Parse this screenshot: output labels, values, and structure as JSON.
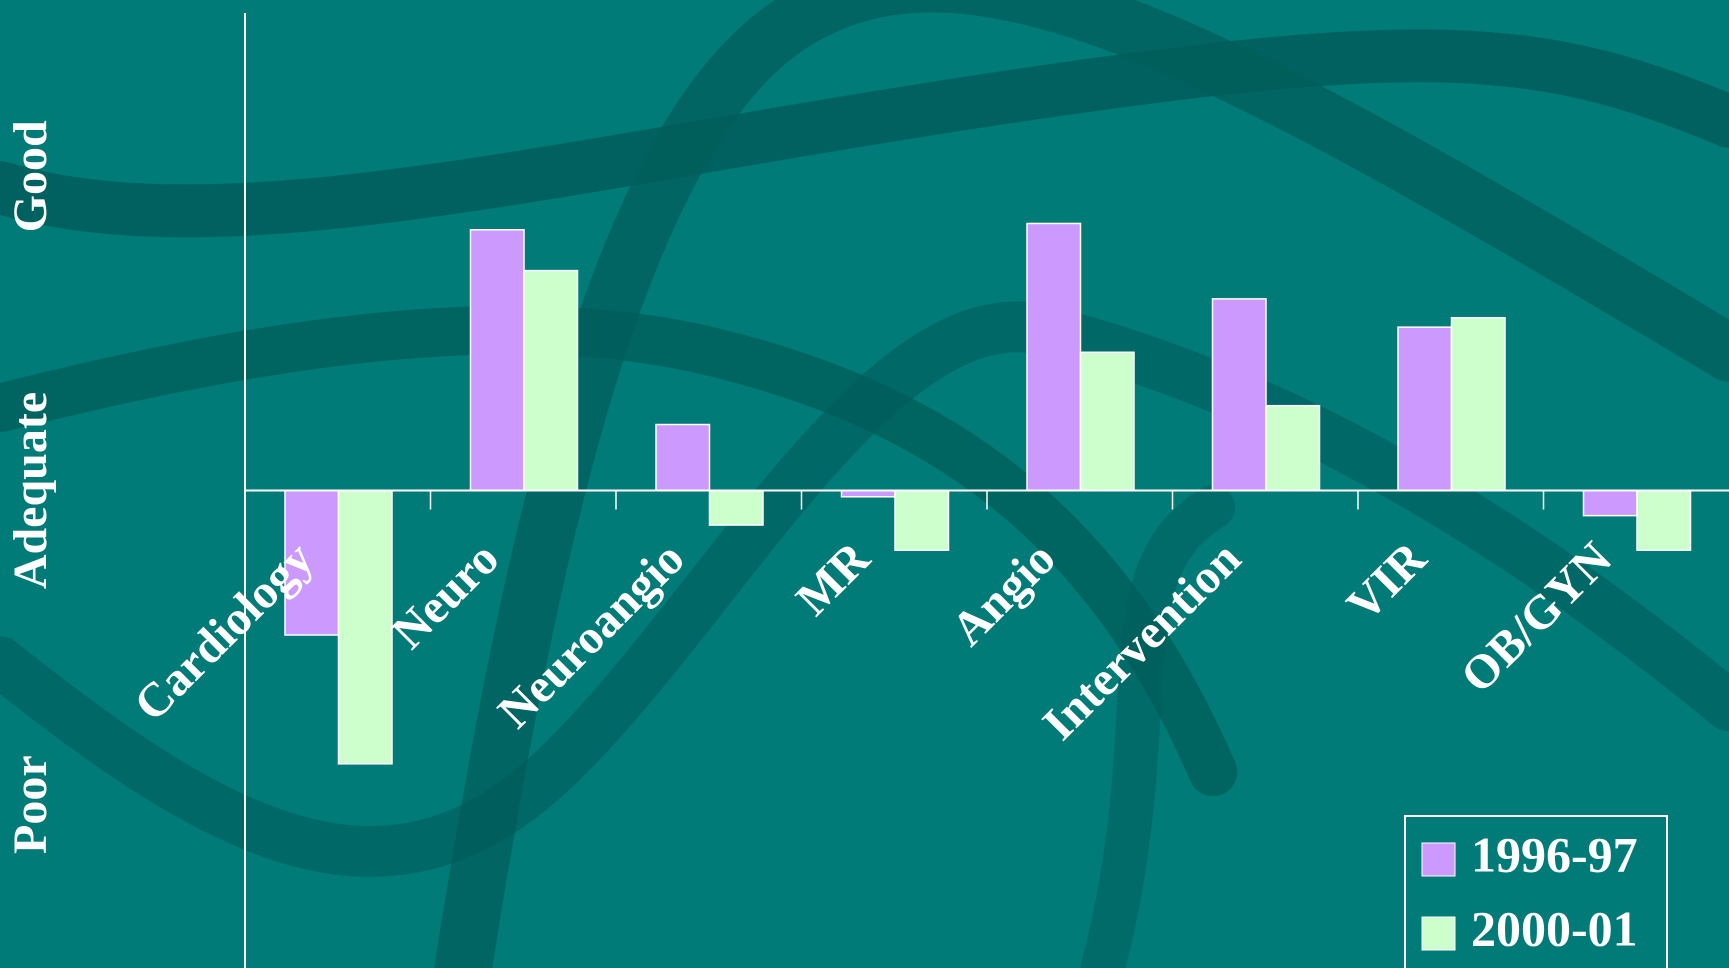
{
  "chart_data": {
    "type": "bar",
    "categories": [
      "Cardiology",
      "Neuro",
      "Neuroangio",
      "MR",
      "Angio",
      "Intervention",
      "VIR",
      "OB/GYN"
    ],
    "series": [
      {
        "name": "1996-97",
        "color": "#cc99ff",
        "values": [
          -0.46,
          0.83,
          0.21,
          -0.02,
          0.85,
          0.61,
          0.52,
          -0.08
        ]
      },
      {
        "name": "2000-01",
        "color": "#ccffcc",
        "values": [
          -0.87,
          0.7,
          -0.11,
          -0.19,
          0.44,
          0.27,
          0.55,
          -0.19
        ]
      }
    ],
    "ylim": [
      -1.52,
      1.52
    ],
    "yticks": [
      {
        "value": -1,
        "label": "Poor"
      },
      {
        "value": 0,
        "label": "Adequate"
      },
      {
        "value": 1,
        "label": "Good"
      }
    ],
    "legend": "bottom-right"
  }
}
